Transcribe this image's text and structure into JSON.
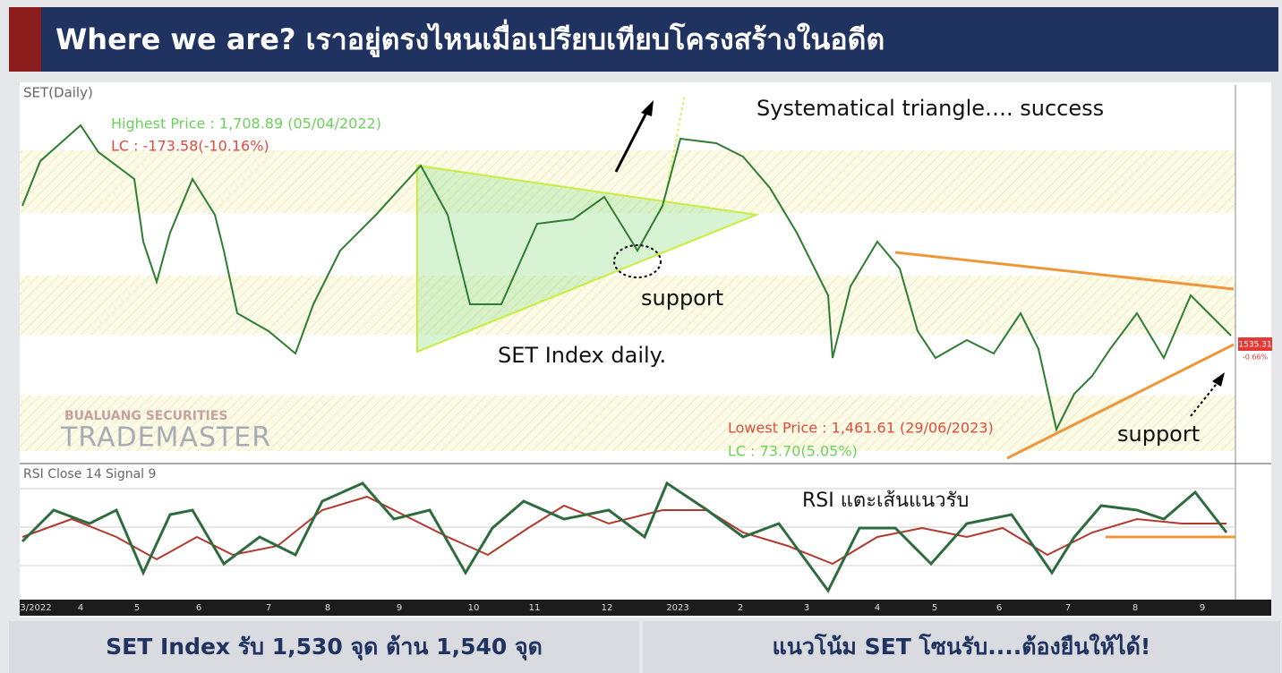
{
  "header": {
    "title": "Where we are? เราอยู่ตรงไหนเมื่อเปรียบเทียบโครงสร้างในอดีต"
  },
  "chart": {
    "panel_title": "SET(Daily)",
    "highest": "Highest Price : 1,708.89 (05/04/2022)",
    "highest_lc": "LC : -173.58(-10.16%)",
    "lowest": "Lowest Price : 1,461.61 (29/06/2023)",
    "lowest_lc": "LC : 73.70(5.05%)",
    "price_tag": "1535.31",
    "change_tag": "-0.66%",
    "rsi_title": "RSI Close 14 Signal 9",
    "watermark_top": "BUALUANG SECURITIES",
    "watermark_bottom": "TRADEMASTER",
    "x_labels": [
      "3/2022",
      "4",
      "5",
      "6",
      "7",
      "8",
      "9",
      "10",
      "11",
      "12",
      "2023",
      "2",
      "3",
      "4",
      "5",
      "6",
      "7",
      "8",
      "9"
    ]
  },
  "annotations": {
    "triangle": "Systematical triangle…. success",
    "support_1": "support",
    "daily": "SET Index daily.",
    "support_2": "support",
    "rsi": "RSI แตะเส้นแนวรับ"
  },
  "footer": {
    "left": "SET Index รับ 1,530 จุด ต้าน 1,540 จุด",
    "right": "แนวโน้ม SET โซนรับ....ต้องยืนให้ได้!"
  }
}
